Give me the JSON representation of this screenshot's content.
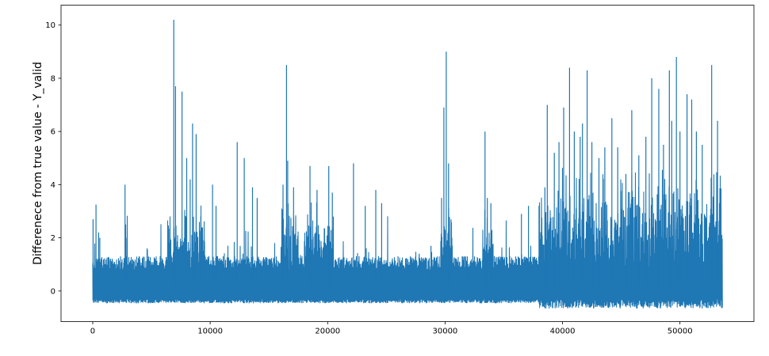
{
  "chart_data": {
    "type": "line",
    "title": "",
    "xlabel": "",
    "ylabel": "Differenece from true value - Y_valid",
    "xlim": [
      -2700,
      56300
    ],
    "ylim": [
      -1.15,
      10.75
    ],
    "x_ticks": [
      0,
      10000,
      20000,
      30000,
      40000,
      50000
    ],
    "y_ticks": [
      0,
      2,
      4,
      6,
      8,
      10
    ],
    "grid": false,
    "legend": "none",
    "line_color": "#1f77b4",
    "series": [
      {
        "n_points": 53600,
        "baseline_range": [
          -0.3,
          0.75
        ],
        "peaks": [
          {
            "x": 30,
            "y": 2.7
          },
          {
            "x": 280,
            "y": 3.25
          },
          {
            "x": 500,
            "y": 2.2
          },
          {
            "x": 600,
            "y": 2.0
          },
          {
            "x": 2750,
            "y": 4.0
          },
          {
            "x": 2800,
            "y": 2.5
          },
          {
            "x": 6900,
            "y": 10.2
          },
          {
            "x": 7050,
            "y": 7.7
          },
          {
            "x": 7600,
            "y": 7.5
          },
          {
            "x": 8000,
            "y": 5.0
          },
          {
            "x": 8300,
            "y": 4.2
          },
          {
            "x": 8500,
            "y": 6.3
          },
          {
            "x": 8800,
            "y": 5.9
          },
          {
            "x": 9200,
            "y": 2.8
          },
          {
            "x": 10200,
            "y": 4.0
          },
          {
            "x": 10500,
            "y": 3.2
          },
          {
            "x": 12300,
            "y": 5.6
          },
          {
            "x": 12900,
            "y": 5.0
          },
          {
            "x": 13600,
            "y": 3.9
          },
          {
            "x": 14000,
            "y": 3.5
          },
          {
            "x": 16200,
            "y": 4.0
          },
          {
            "x": 16500,
            "y": 8.5
          },
          {
            "x": 16600,
            "y": 4.9
          },
          {
            "x": 17100,
            "y": 3.9
          },
          {
            "x": 18500,
            "y": 4.7
          },
          {
            "x": 19100,
            "y": 3.8
          },
          {
            "x": 20100,
            "y": 4.7
          },
          {
            "x": 20400,
            "y": 3.7
          },
          {
            "x": 22200,
            "y": 4.8
          },
          {
            "x": 23200,
            "y": 3.2
          },
          {
            "x": 24100,
            "y": 3.8
          },
          {
            "x": 24600,
            "y": 3.3
          },
          {
            "x": 27800,
            "y": 1.4
          },
          {
            "x": 28800,
            "y": 1.7
          },
          {
            "x": 29700,
            "y": 3.5
          },
          {
            "x": 29900,
            "y": 6.9
          },
          {
            "x": 30100,
            "y": 9.0
          },
          {
            "x": 30300,
            "y": 4.8
          },
          {
            "x": 31900,
            "y": 1.3
          },
          {
            "x": 33400,
            "y": 6.0
          },
          {
            "x": 33600,
            "y": 3.5
          },
          {
            "x": 33900,
            "y": 3.3
          },
          {
            "x": 36500,
            "y": 2.9
          },
          {
            "x": 37100,
            "y": 3.2
          },
          {
            "x": 38000,
            "y": 3.2
          },
          {
            "x": 38500,
            "y": 3.9
          },
          {
            "x": 38700,
            "y": 7.0
          },
          {
            "x": 39300,
            "y": 5.2
          },
          {
            "x": 39700,
            "y": 5.6
          },
          {
            "x": 40100,
            "y": 6.9
          },
          {
            "x": 40600,
            "y": 8.4
          },
          {
            "x": 41000,
            "y": 6.0
          },
          {
            "x": 41500,
            "y": 5.8
          },
          {
            "x": 41700,
            "y": 6.3
          },
          {
            "x": 42100,
            "y": 8.3
          },
          {
            "x": 42500,
            "y": 5.6
          },
          {
            "x": 43100,
            "y": 5.0
          },
          {
            "x": 43600,
            "y": 5.4
          },
          {
            "x": 44200,
            "y": 6.5
          },
          {
            "x": 44700,
            "y": 5.4
          },
          {
            "x": 45400,
            "y": 4.4
          },
          {
            "x": 45900,
            "y": 6.8
          },
          {
            "x": 46500,
            "y": 5.1
          },
          {
            "x": 47100,
            "y": 5.8
          },
          {
            "x": 47600,
            "y": 8.0
          },
          {
            "x": 48200,
            "y": 7.6
          },
          {
            "x": 48600,
            "y": 5.5
          },
          {
            "x": 49100,
            "y": 8.3
          },
          {
            "x": 49300,
            "y": 6.4
          },
          {
            "x": 49700,
            "y": 8.8
          },
          {
            "x": 50000,
            "y": 6.0
          },
          {
            "x": 50600,
            "y": 7.4
          },
          {
            "x": 51000,
            "y": 7.2
          },
          {
            "x": 51400,
            "y": 6.0
          },
          {
            "x": 51900,
            "y": 5.5
          },
          {
            "x": 52700,
            "y": 8.5
          },
          {
            "x": 53200,
            "y": 6.4
          }
        ]
      }
    ]
  }
}
